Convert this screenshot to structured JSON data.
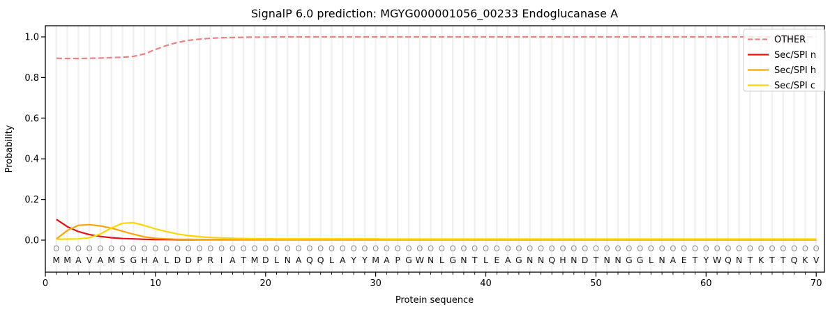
{
  "chart_data": {
    "type": "line",
    "title": "SignalP 6.0 prediction: MGYG000001056_00233 Endoglucanase A",
    "xlabel": "Protein sequence",
    "ylabel": "Probability",
    "xlim": [
      0,
      70.75
    ],
    "ylim": [
      -0.16,
      1.055
    ],
    "x_major_ticks": [
      0,
      10,
      20,
      30,
      40,
      50,
      60,
      70
    ],
    "y_ticks": [
      0.0,
      0.2,
      0.4,
      0.6,
      0.8,
      1.0
    ],
    "grid": "vertical gridline at every residue position",
    "legend_position": "upper right",
    "x_positions_note": "residues 1-70",
    "sequence": "MMAVAMSGHALDDPRIATMDLNAQQLAYYMAPGWNLGNTLEAGNNQHNDTNNGGLNAETYWQNTKTTQKV",
    "predicted_labels": "OOOOOOOOOOOOOOOOOOOOOOOOOOOOOOOOOOOOOOOOOOOOOOOOOOOOOOOOOOOOOOOOOOOOOO",
    "series": [
      {
        "name": "OTHER",
        "color": "#f08080",
        "dashed": true,
        "values": [
          0.895,
          0.894,
          0.894,
          0.895,
          0.896,
          0.898,
          0.9,
          0.904,
          0.916,
          0.938,
          0.958,
          0.973,
          0.983,
          0.989,
          0.993,
          0.996,
          0.997,
          0.998,
          0.999,
          0.999,
          1.0,
          1.0,
          1.0,
          1.0,
          1.0,
          1.0,
          1.0,
          1.0,
          1.0,
          1.0,
          1.0,
          1.0,
          1.0,
          1.0,
          1.0,
          1.0,
          1.0,
          1.0,
          1.0,
          1.0,
          1.0,
          1.0,
          1.0,
          1.0,
          1.0,
          1.0,
          1.0,
          1.0,
          1.0,
          1.0,
          1.0,
          1.0,
          1.0,
          1.0,
          1.0,
          1.0,
          1.0,
          1.0,
          1.0,
          1.0,
          1.0,
          1.0,
          1.0,
          1.0,
          1.0,
          1.0,
          1.0,
          1.0,
          1.0,
          1.0
        ]
      },
      {
        "name": "Sec/SPI n",
        "color": "#ee0e0e",
        "dashed": false,
        "values": [
          0.102,
          0.066,
          0.042,
          0.027,
          0.018,
          0.012,
          0.008,
          0.006,
          0.004,
          0.003,
          0.003,
          0.002,
          0.002,
          0.002,
          0.002,
          0.002,
          0.002,
          0.002,
          0.002,
          0.002,
          0.002,
          0.002,
          0.002,
          0.002,
          0.002,
          0.002,
          0.002,
          0.002,
          0.002,
          0.002,
          0.002,
          0.002,
          0.002,
          0.002,
          0.002,
          0.002,
          0.002,
          0.002,
          0.002,
          0.002,
          0.002,
          0.002,
          0.002,
          0.002,
          0.002,
          0.002,
          0.002,
          0.002,
          0.002,
          0.002,
          0.002,
          0.002,
          0.002,
          0.002,
          0.002,
          0.002,
          0.002,
          0.002,
          0.002,
          0.002,
          0.002,
          0.002,
          0.002,
          0.002,
          0.002,
          0.002,
          0.002,
          0.002,
          0.002,
          0.002
        ]
      },
      {
        "name": "Sec/SPI h",
        "color": "#ffa500",
        "dashed": false,
        "values": [
          0.006,
          0.048,
          0.073,
          0.076,
          0.07,
          0.059,
          0.044,
          0.029,
          0.016,
          0.009,
          0.006,
          0.004,
          0.004,
          0.003,
          0.003,
          0.003,
          0.003,
          0.003,
          0.003,
          0.003,
          0.003,
          0.003,
          0.003,
          0.003,
          0.003,
          0.003,
          0.003,
          0.003,
          0.003,
          0.003,
          0.003,
          0.003,
          0.003,
          0.003,
          0.003,
          0.003,
          0.003,
          0.003,
          0.003,
          0.003,
          0.003,
          0.003,
          0.003,
          0.003,
          0.003,
          0.003,
          0.003,
          0.003,
          0.003,
          0.003,
          0.003,
          0.003,
          0.003,
          0.003,
          0.003,
          0.003,
          0.003,
          0.003,
          0.003,
          0.003,
          0.003,
          0.003,
          0.003,
          0.003,
          0.003,
          0.003,
          0.003,
          0.003,
          0.003,
          0.003
        ]
      },
      {
        "name": "Sec/SPI c",
        "color": "#ffd700",
        "dashed": false,
        "values": [
          0.004,
          0.005,
          0.006,
          0.012,
          0.03,
          0.06,
          0.083,
          0.086,
          0.072,
          0.055,
          0.042,
          0.03,
          0.022,
          0.017,
          0.013,
          0.011,
          0.009,
          0.008,
          0.007,
          0.007,
          0.006,
          0.006,
          0.006,
          0.006,
          0.006,
          0.006,
          0.006,
          0.006,
          0.006,
          0.006,
          0.005,
          0.005,
          0.005,
          0.005,
          0.005,
          0.005,
          0.005,
          0.005,
          0.005,
          0.005,
          0.005,
          0.005,
          0.005,
          0.005,
          0.005,
          0.005,
          0.005,
          0.005,
          0.005,
          0.005,
          0.005,
          0.005,
          0.005,
          0.005,
          0.005,
          0.005,
          0.005,
          0.005,
          0.005,
          0.005,
          0.005,
          0.005,
          0.005,
          0.005,
          0.005,
          0.005,
          0.005,
          0.005,
          0.005,
          0.005
        ]
      }
    ]
  }
}
